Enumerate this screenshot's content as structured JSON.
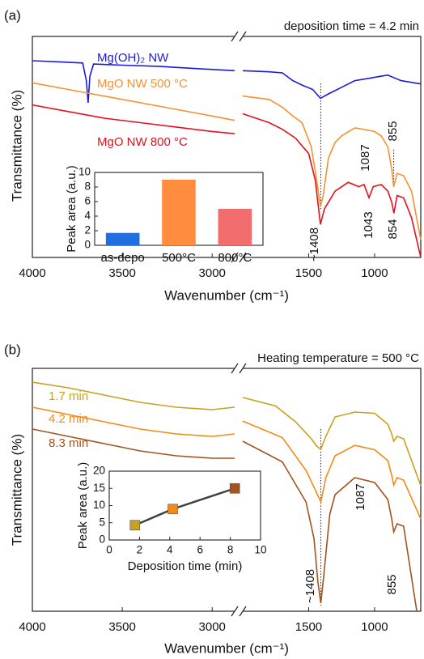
{
  "chart_data": [
    {
      "type": "spectra",
      "panel_label": "(a)",
      "title": "deposition time = 4.2 min",
      "xlabel": "Wavenumber (cm⁻¹)",
      "ylabel": "Transmittance (%)",
      "xlim_segments": [
        [
          4000,
          2875
        ],
        [
          2000,
          650
        ]
      ],
      "xticks": [
        4000,
        3500,
        3000,
        1500,
        1000
      ],
      "ylim": [
        0,
        100
      ],
      "series": [
        {
          "name": "Mg(OH)₂ NW",
          "color": "#1a1adc",
          "x": [
            4000,
            3850,
            3720,
            3700,
            3690,
            3680,
            3660,
            3500,
            3300,
            3100,
            2875,
            2000,
            1800,
            1700,
            1620,
            1550,
            1470,
            1411,
            1350,
            1250,
            1150,
            1050,
            950,
            900,
            800,
            700,
            650
          ],
          "values": [
            89,
            88.5,
            88,
            80,
            70,
            82,
            87.5,
            87,
            86.5,
            85.5,
            84.5,
            84.5,
            84,
            83.5,
            80,
            78,
            76,
            72,
            74,
            77,
            80,
            81,
            82,
            82.5,
            80,
            79,
            78.5
          ]
        },
        {
          "name": "MgO NW 500 °C",
          "color": "#f5922f",
          "x": [
            4000,
            3800,
            3600,
            3400,
            3200,
            3000,
            2875,
            2000,
            1800,
            1700,
            1620,
            1550,
            1480,
            1440,
            1411,
            1390,
            1350,
            1300,
            1250,
            1150,
            1087,
            1000,
            950,
            900,
            870,
            855,
            830,
            780,
            720,
            650
          ],
          "values": [
            79,
            76,
            73,
            70,
            67,
            64,
            62,
            73,
            71.5,
            68,
            64,
            61,
            50,
            35,
            23,
            28,
            45,
            52,
            55,
            58.6,
            58,
            57,
            55,
            50,
            40,
            32,
            38,
            37,
            30,
            8
          ]
        },
        {
          "name": "MgO NW 800 °C",
          "color": "#e3101e",
          "x": [
            4000,
            3800,
            3600,
            3400,
            3200,
            3000,
            2875,
            2000,
            1800,
            1700,
            1600,
            1500,
            1450,
            1411,
            1380,
            1300,
            1200,
            1120,
            1080,
            1043,
            1010,
            950,
            900,
            870,
            854,
            830,
            780,
            720,
            650
          ],
          "values": [
            69,
            66,
            63,
            61,
            59,
            57,
            56,
            65,
            61,
            58,
            54,
            47,
            35,
            15,
            22,
            30,
            34,
            32,
            33,
            27,
            32,
            33,
            30,
            25,
            20,
            28,
            27,
            18,
            0
          ]
        }
      ],
      "annotations": [
        {
          "value": 1408,
          "label": "~1408"
        },
        {
          "value": 1087,
          "label": "1087"
        },
        {
          "value": 855,
          "label": "855"
        },
        {
          "value": 1043,
          "label": "1043"
        },
        {
          "value": 854,
          "label": "854"
        }
      ],
      "dotted_lines": [
        1408,
        855
      ]
    },
    {
      "type": "bar",
      "ylabel": "Peak area (a.u.)",
      "categories": [
        "as-depo",
        "500°C",
        "800°C"
      ],
      "values": [
        1.7,
        9,
        5
      ],
      "colors": [
        "#1f6fe0",
        "#ff8c3f",
        "#f26d6d"
      ],
      "ylim": [
        0,
        10
      ],
      "yticks": [
        0,
        2,
        4,
        6,
        8,
        10
      ]
    },
    {
      "type": "spectra",
      "panel_label": "(b)",
      "title": "Heating temperature = 500 °C",
      "xlabel": "Wavenumber (cm⁻¹)",
      "ylabel": "Transmittance (%)",
      "xlim_segments": [
        [
          4000,
          2875
        ],
        [
          2000,
          650
        ]
      ],
      "xticks": [
        4000,
        3500,
        3000,
        1500,
        1000
      ],
      "ylim": [
        0,
        100
      ],
      "series": [
        {
          "name": "1.7 min",
          "color": "#c8a21e",
          "x": [
            4000,
            3800,
            3600,
            3400,
            3200,
            3000,
            2875,
            2000,
            1750,
            1600,
            1480,
            1440,
            1408,
            1370,
            1300,
            1150,
            1000,
            900,
            870,
            855,
            830,
            780,
            650
          ],
          "values": [
            94.3,
            92,
            89,
            86,
            84,
            83,
            84,
            88,
            84.5,
            78,
            71,
            68,
            66.7,
            72,
            80,
            82,
            81.5,
            77,
            73,
            70,
            72,
            71,
            51.7
          ]
        },
        {
          "name": "4.2 min",
          "color": "#f28a18",
          "x": [
            4000,
            3800,
            3600,
            3400,
            3200,
            3000,
            2875,
            2000,
            1700,
            1520,
            1450,
            1408,
            1370,
            1300,
            1150,
            1000,
            900,
            870,
            855,
            830,
            780,
            650
          ],
          "values": [
            84,
            81,
            78,
            75,
            73,
            72,
            73,
            78.3,
            71.5,
            58,
            50,
            45,
            55,
            64,
            68.3,
            66.5,
            62,
            56,
            52,
            55,
            54,
            38
          ]
        },
        {
          "name": "8.3 min",
          "color": "#a5521c",
          "x": [
            4000,
            3800,
            3600,
            3400,
            3200,
            3000,
            2875,
            2000,
            1700,
            1520,
            1460,
            1430,
            1408,
            1385,
            1340,
            1300,
            1150,
            1000,
            900,
            870,
            855,
            830,
            780,
            680
          ],
          "values": [
            75,
            72,
            69,
            66,
            64,
            63,
            63,
            70,
            61.5,
            45,
            30,
            12,
            3.3,
            15,
            40,
            48,
            55,
            53,
            46,
            38,
            32.7,
            36,
            35,
            0
          ]
        }
      ],
      "annotations": [
        {
          "value": 1408,
          "label": "~1408"
        },
        {
          "value": 1087,
          "label": "1087"
        },
        {
          "value": 855,
          "label": "855"
        }
      ],
      "dotted_lines": [
        1408
      ]
    },
    {
      "type": "scatter",
      "xlabel": "Deposition time (min)",
      "ylabel": "Peak area (a.u.)",
      "x": [
        1.7,
        4.2,
        8.3
      ],
      "values": [
        4.3,
        9,
        15
      ],
      "colors": [
        "#c8a21e",
        "#f28a18",
        "#a5521c"
      ],
      "line_color": "#404040",
      "xlim": [
        0,
        10
      ],
      "xticks": [
        0,
        2,
        4,
        6,
        8,
        10
      ],
      "ylim": [
        0,
        20
      ],
      "yticks": [
        0,
        5,
        10,
        15,
        20
      ]
    }
  ]
}
